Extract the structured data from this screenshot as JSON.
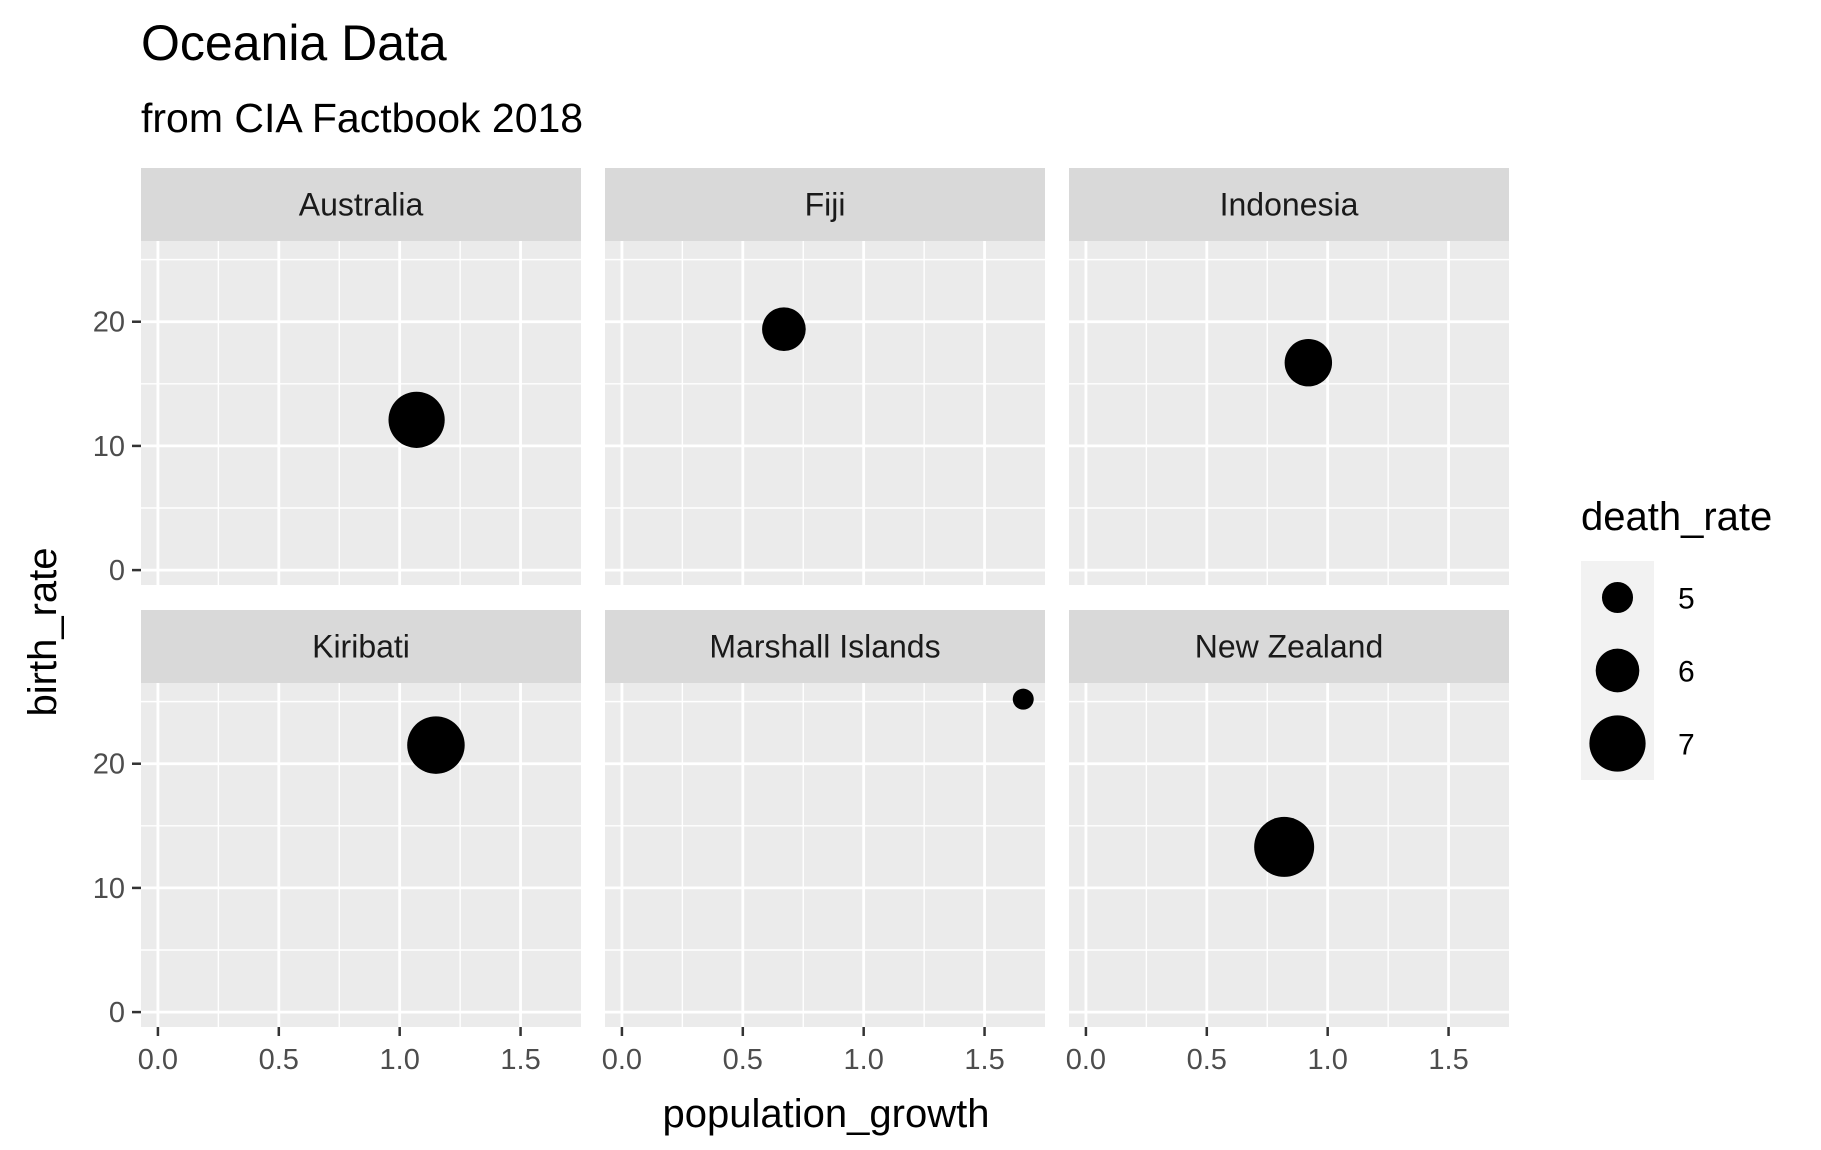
{
  "chart_data": {
    "type": "scatter",
    "title": "Oceania Data",
    "subtitle": "from CIA Factbook 2018",
    "xlabel": "population_growth",
    "ylabel": "birth_rate",
    "xlim": [
      -0.07,
      1.75
    ],
    "ylim": [
      -1.2,
      26.5
    ],
    "x_ticks": [
      0.0,
      0.5,
      1.0,
      1.5
    ],
    "x_tick_labels": [
      "0.0",
      "0.5",
      "1.0",
      "1.5"
    ],
    "y_ticks": [
      0,
      10,
      20
    ],
    "y_tick_labels": [
      "0",
      "10",
      "20"
    ],
    "grid": true,
    "facets": {
      "rows": 2,
      "cols": 3
    },
    "size_legend": {
      "title": "death_rate",
      "placement": "right",
      "entries": [
        {
          "label": "5",
          "value": 5
        },
        {
          "label": "6",
          "value": 6
        },
        {
          "label": "7",
          "value": 7
        }
      ]
    },
    "panels": [
      {
        "label": "Australia",
        "x": 1.07,
        "y": 12.1,
        "size": 7.0
      },
      {
        "label": "Fiji",
        "x": 0.67,
        "y": 19.4,
        "size": 6.0
      },
      {
        "label": "Indonesia",
        "x": 0.92,
        "y": 16.7,
        "size": 6.3
      },
      {
        "label": "Kiribati",
        "x": 1.15,
        "y": 21.5,
        "size": 7.1
      },
      {
        "label": "Marshall Islands",
        "x": 1.66,
        "y": 25.2,
        "size": 4.2
      },
      {
        "label": "New Zealand",
        "x": 0.82,
        "y": 13.3,
        "size": 7.3
      }
    ],
    "colors": {
      "panel_bg": "#ebebeb",
      "strip_bg": "#d9d9d9",
      "grid": "#ffffff",
      "point": "#000000",
      "legend_key_bg": "#f2f2f2",
      "tick_text": "#4d4d4d"
    }
  }
}
